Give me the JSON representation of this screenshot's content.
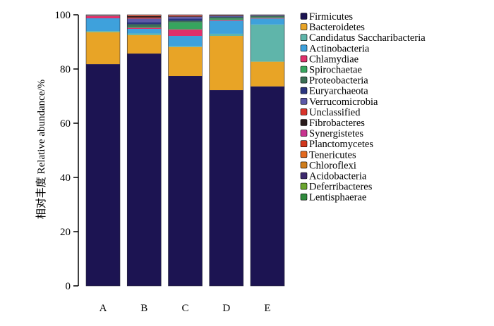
{
  "chart_data": {
    "type": "bar",
    "stacked": true,
    "categories": [
      "A",
      "B",
      "C",
      "D",
      "E"
    ],
    "ylabel": "相对丰度 Relative abundance/%",
    "ylim": [
      0,
      100
    ],
    "yticks": [
      0,
      20,
      40,
      60,
      80,
      100
    ],
    "legend_position": "right",
    "series": [
      {
        "name": "Firmicutes",
        "color": "#1c1452",
        "values": [
          81.8,
          85.7,
          77.4,
          72.2,
          73.6
        ]
      },
      {
        "name": "Bacteroidetes",
        "color": "#e8a426",
        "values": [
          11.8,
          6.8,
          10.7,
          20.0,
          9.1
        ]
      },
      {
        "name": "Candidatus Saccharibacteria",
        "color": "#5fb5aa",
        "values": [
          0.4,
          0.6,
          0.3,
          0.8,
          13.7
        ]
      },
      {
        "name": "Actinobacteria",
        "color": "#3ea1dc",
        "values": [
          4.7,
          1.7,
          3.8,
          4.8,
          2.2
        ]
      },
      {
        "name": "Chlamydiae",
        "color": "#e0306b",
        "values": [
          0.9,
          0.4,
          2.4,
          0.3,
          0.2
        ]
      },
      {
        "name": "Spirochaetae",
        "color": "#37a55e",
        "values": [
          0.1,
          0.3,
          2.6,
          0.5,
          0.2
        ]
      },
      {
        "name": "Proteobacteria",
        "color": "#3b6f55",
        "values": [
          0.1,
          1.0,
          0.6,
          0.5,
          0.5
        ]
      },
      {
        "name": "Euryarchaeota",
        "color": "#2b3580",
        "values": [
          0.1,
          0.8,
          0.8,
          0.3,
          0.2
        ]
      },
      {
        "name": "Verrucomicrobia",
        "color": "#5c59a8",
        "values": [
          0.0,
          1.3,
          0.6,
          0.2,
          0.1
        ]
      },
      {
        "name": "Unclassified",
        "color": "#d9342b",
        "values": [
          0.0,
          0.4,
          0.1,
          0.1,
          0.0
        ]
      },
      {
        "name": "Fibrobacteres",
        "color": "#2a1b1b",
        "values": [
          0.0,
          0.5,
          0.2,
          0.2,
          0.1
        ]
      },
      {
        "name": "Synergistetes",
        "color": "#c8338f",
        "values": [
          0.0,
          0.1,
          0.1,
          0.0,
          0.0
        ]
      },
      {
        "name": "Planctomycetes",
        "color": "#d1371d",
        "values": [
          0.0,
          0.1,
          0.1,
          0.0,
          0.0
        ]
      },
      {
        "name": "Tenericutes",
        "color": "#e36a1f",
        "values": [
          0.1,
          0.2,
          0.2,
          0.1,
          0.1
        ]
      },
      {
        "name": "Chloroflexi",
        "color": "#cf7d1c",
        "values": [
          0.0,
          0.1,
          0.0,
          0.0,
          0.0
        ]
      },
      {
        "name": "Acidobacteria",
        "color": "#3d2a6e",
        "values": [
          0.0,
          0.0,
          0.1,
          0.0,
          0.0
        ]
      },
      {
        "name": "Deferribacteres",
        "color": "#6aa52e",
        "values": [
          0.0,
          0.0,
          0.0,
          0.0,
          0.0
        ]
      },
      {
        "name": "Lentisphaerae",
        "color": "#2f8a3c",
        "values": [
          0.0,
          0.0,
          0.0,
          0.0,
          0.0
        ]
      }
    ]
  }
}
